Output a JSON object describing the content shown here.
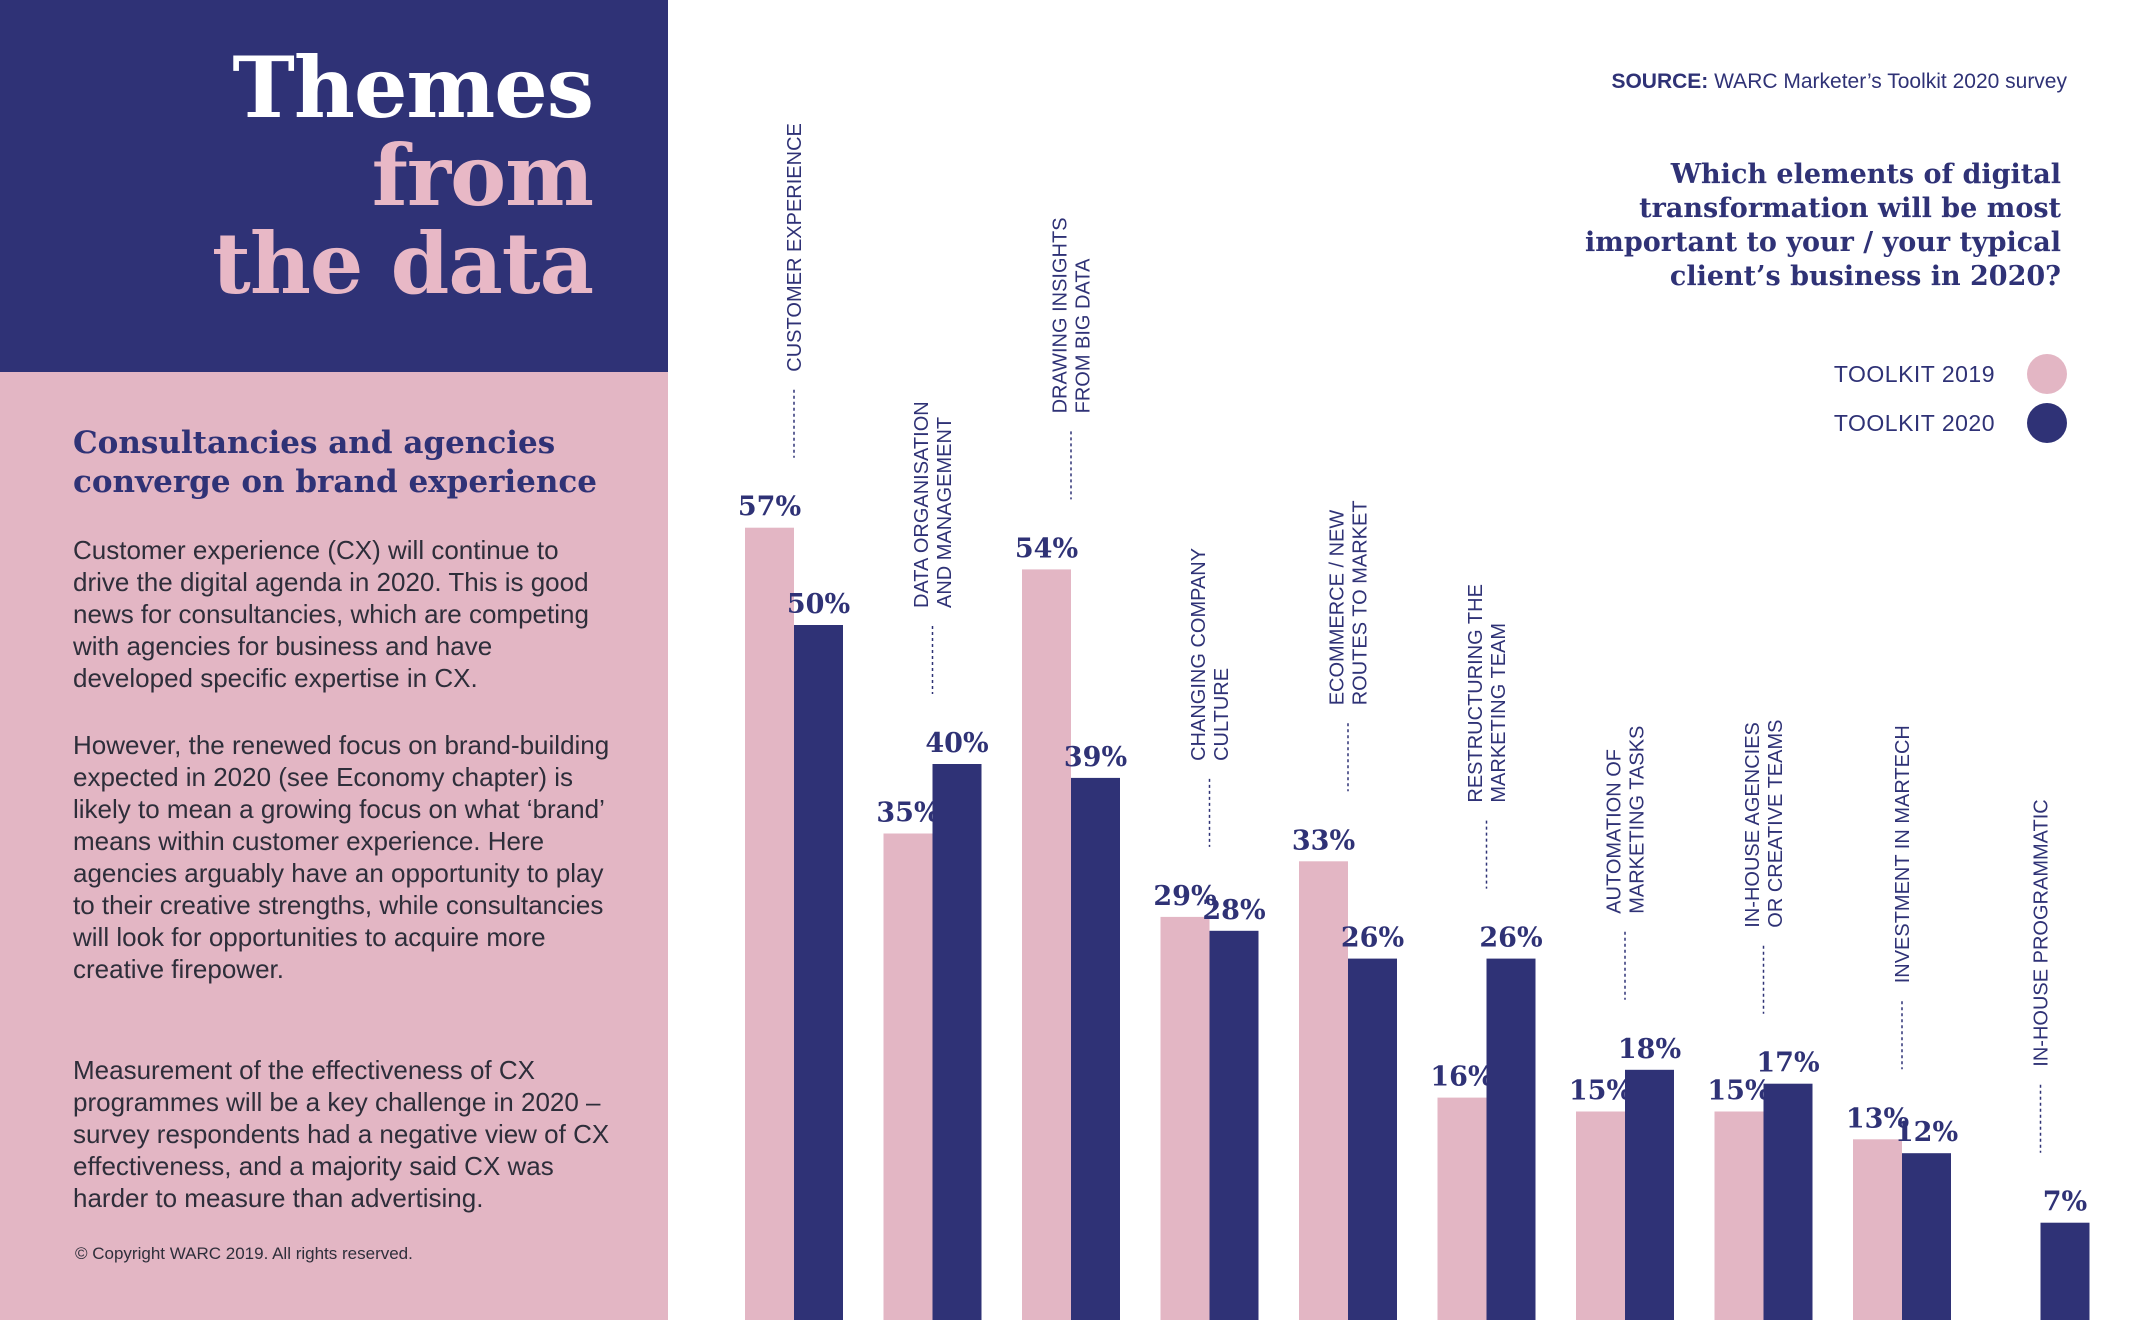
{
  "hero": {
    "line1": "Themes",
    "line2": "from",
    "line3": "the data"
  },
  "subhead": "Consultancies and agencies converge on brand experience",
  "paragraphs": [
    "Customer experience (CX) will continue to drive the digital agenda in 2020. This is good news for consultancies, which are competing with agencies for business and have developed specific expertise in CX.",
    "However, the renewed focus on brand-building expected in 2020 (see Economy chapter) is likely to mean a growing focus on what ‘brand’ means within customer experience. Here agencies arguably have an opportunity to play to their creative strengths, while consultancies will look for opportunities to acquire more creative firepower.",
    "Measurement of the effectiveness of CX programmes will be a key challenge in 2020 – survey respondents had a negative view of CX effectiveness, and a majority said CX was harder to measure than advertising."
  ],
  "copyright": "© Copyright WARC 2019. All rights reserved.",
  "source": {
    "label": "SOURCE:",
    "text": "WARC Marketer’s Toolkit 2020 survey"
  },
  "question": "Which elements of digital transformation will be most important to your / your typical client’s business in 2020?",
  "legend": [
    {
      "label": "TOOLKIT 2019",
      "color": "#e3b6c4"
    },
    {
      "label": "TOOLKIT 2020",
      "color": "#2f3276"
    }
  ],
  "chart_data": {
    "type": "bar",
    "title": "Which elements of digital transformation will be most important to your / your typical client’s business in 2020?",
    "categories": [
      [
        "CUSTOMER EXPERIENCE"
      ],
      [
        "DATA ORGANISATION",
        "AND MANAGEMENT"
      ],
      [
        "DRAWING INSIGHTS",
        "FROM BIG DATA"
      ],
      [
        "CHANGING COMPANY",
        "CULTURE"
      ],
      [
        "ECOMMERCE / NEW",
        "ROUTES TO MARKET"
      ],
      [
        "RESTRUCTURING THE",
        "MARKETING TEAM"
      ],
      [
        "AUTOMATION OF",
        "MARKETING TASKS"
      ],
      [
        "IN-HOUSE AGENCIES",
        "OR CREATIVE TEAMS"
      ],
      [
        "INVESTMENT IN MARTECH"
      ],
      [
        "IN-HOUSE PROGRAMMATIC"
      ]
    ],
    "series": [
      {
        "name": "TOOLKIT 2019",
        "color": "#e3b6c4",
        "values": [
          57,
          35,
          54,
          29,
          33,
          16,
          15,
          15,
          13,
          null
        ]
      },
      {
        "name": "TOOLKIT 2020",
        "color": "#2f3276",
        "values": [
          50,
          40,
          39,
          28,
          26,
          26,
          18,
          17,
          12,
          7
        ]
      }
    ],
    "value_suffix": "%",
    "ylim": [
      0,
      57
    ],
    "xlabel": "",
    "ylabel": ""
  }
}
